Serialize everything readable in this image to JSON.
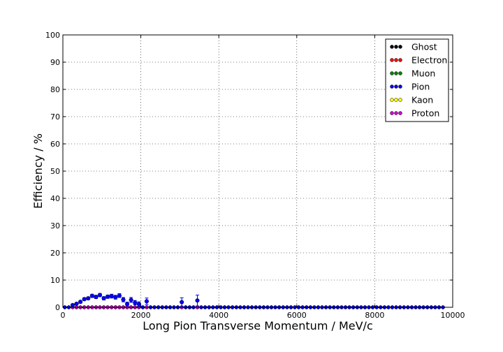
{
  "chart_data": {
    "type": "scatter",
    "title": "",
    "xlabel": "Long Pion Transverse Momentum / MeV/c",
    "ylabel": "Efficiency / %",
    "xlim": [
      0,
      10000
    ],
    "ylim": [
      0,
      100
    ],
    "xticks": [
      0,
      2000,
      4000,
      6000,
      8000,
      10000
    ],
    "yticks": [
      0,
      10,
      20,
      30,
      40,
      50,
      60,
      70,
      80,
      90,
      100
    ],
    "grid": true,
    "legend_position": "top-right",
    "x_spacing_note": "bins of 100 MeV/c",
    "series": [
      {
        "name": "Ghost",
        "color": "#000000",
        "flat_zero": true
      },
      {
        "name": "Electron",
        "color": "#ff0000",
        "flat_zero": true
      },
      {
        "name": "Muon",
        "color": "#008000",
        "flat_zero": true
      },
      {
        "name": "Pion",
        "color": "#0000ff",
        "flat_zero": false,
        "points": [
          {
            "x": 250,
            "y": 0.8,
            "err": 0.4
          },
          {
            "x": 350,
            "y": 1.3,
            "err": 0.4
          },
          {
            "x": 450,
            "y": 2.0,
            "err": 0.5
          },
          {
            "x": 550,
            "y": 3.0,
            "err": 0.5
          },
          {
            "x": 650,
            "y": 3.3,
            "err": 0.5
          },
          {
            "x": 750,
            "y": 4.2,
            "err": 0.6
          },
          {
            "x": 850,
            "y": 3.8,
            "err": 0.6
          },
          {
            "x": 950,
            "y": 4.5,
            "err": 0.6
          },
          {
            "x": 1050,
            "y": 3.3,
            "err": 0.6
          },
          {
            "x": 1150,
            "y": 3.9,
            "err": 0.6
          },
          {
            "x": 1250,
            "y": 4.1,
            "err": 0.7
          },
          {
            "x": 1350,
            "y": 3.7,
            "err": 0.7
          },
          {
            "x": 1450,
            "y": 4.3,
            "err": 0.7
          },
          {
            "x": 1550,
            "y": 2.8,
            "err": 0.8
          },
          {
            "x": 1650,
            "y": 1.2,
            "err": 0.7
          },
          {
            "x": 1750,
            "y": 2.7,
            "err": 0.9
          },
          {
            "x": 1850,
            "y": 1.7,
            "err": 0.8
          },
          {
            "x": 1950,
            "y": 1.2,
            "err": 0.8
          },
          {
            "x": 2150,
            "y": 2.2,
            "err": 1.2
          },
          {
            "x": 3050,
            "y": 1.9,
            "err": 1.6
          },
          {
            "x": 3450,
            "y": 2.5,
            "err": 2.0
          }
        ]
      },
      {
        "name": "Kaon",
        "color": "#ffff00",
        "flat_zero": true
      },
      {
        "name": "Proton",
        "color": "#cc00cc",
        "flat_zero": true
      }
    ]
  }
}
